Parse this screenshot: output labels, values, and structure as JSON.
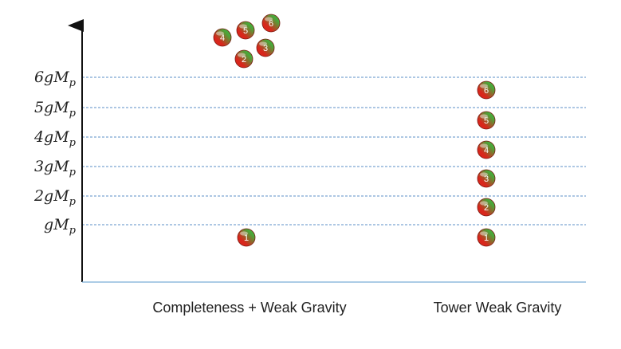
{
  "levels": [
    {
      "coef": "",
      "sym": "gM",
      "sub": "p",
      "value": 1
    },
    {
      "coef": "2",
      "sym": "gM",
      "sub": "p",
      "value": 2
    },
    {
      "coef": "3",
      "sym": "gM",
      "sub": "p",
      "value": 3
    },
    {
      "coef": "4",
      "sym": "gM",
      "sub": "p",
      "value": 4
    },
    {
      "coef": "5",
      "sym": "gM",
      "sub": "p",
      "value": 5
    },
    {
      "coef": "6",
      "sym": "gM",
      "sub": "p",
      "value": 6
    }
  ],
  "columns": [
    {
      "label": "Completeness + Weak Gravity"
    },
    {
      "label": "Tower Weak Gravity"
    }
  ],
  "balls": {
    "completeness": [
      "1",
      "2",
      "3",
      "4",
      "5",
      "6"
    ],
    "tower": [
      "1",
      "2",
      "3",
      "4",
      "5",
      "6"
    ]
  },
  "colors": {
    "gridline": "#5b8fc7",
    "axis": "#111111",
    "baseline": "#7aaed6",
    "ball_red": "#d9261c",
    "ball_green": "#49a83a"
  }
}
